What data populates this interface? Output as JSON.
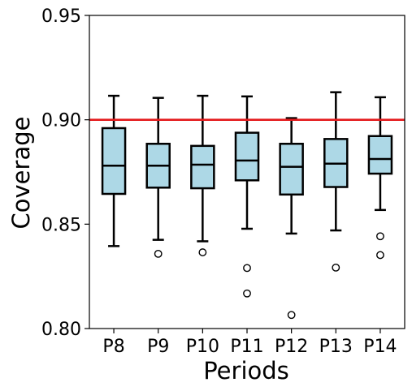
{
  "chart_data": {
    "type": "box",
    "xlabel": "Periods",
    "ylabel": "Coverage",
    "ylim": [
      0.8,
      0.95
    ],
    "yticks": [
      "0.80",
      "0.85",
      "0.90",
      "0.95"
    ],
    "categories": [
      "P8",
      "P9",
      "P10",
      "P11",
      "P12",
      "P13",
      "P14"
    ],
    "reference_line": {
      "value": 0.9,
      "color": "#e41a1c"
    },
    "box_fill": "#add8e6",
    "grid": false,
    "boxes": [
      {
        "label": "P8",
        "whisker_low": 0.8395,
        "q1": 0.8645,
        "median": 0.878,
        "q3": 0.896,
        "whisker_high": 0.9115,
        "outliers": []
      },
      {
        "label": "P9",
        "whisker_low": 0.8425,
        "q1": 0.8675,
        "median": 0.878,
        "q3": 0.8885,
        "whisker_high": 0.9105,
        "outliers": [
          0.8358
        ]
      },
      {
        "label": "P10",
        "whisker_low": 0.8418,
        "q1": 0.8672,
        "median": 0.8785,
        "q3": 0.8875,
        "whisker_high": 0.9115,
        "outliers": [
          0.8365
        ]
      },
      {
        "label": "P11",
        "whisker_low": 0.8478,
        "q1": 0.871,
        "median": 0.8805,
        "q3": 0.8938,
        "whisker_high": 0.9112,
        "outliers": [
          0.829,
          0.8168
        ]
      },
      {
        "label": "P12",
        "whisker_low": 0.8455,
        "q1": 0.8642,
        "median": 0.8775,
        "q3": 0.8885,
        "whisker_high": 0.9008,
        "outliers": [
          0.8065
        ]
      },
      {
        "label": "P13",
        "whisker_low": 0.847,
        "q1": 0.8678,
        "median": 0.879,
        "q3": 0.8908,
        "whisker_high": 0.9132,
        "outliers": [
          0.8292
        ]
      },
      {
        "label": "P14",
        "whisker_low": 0.8568,
        "q1": 0.8742,
        "median": 0.8812,
        "q3": 0.8922,
        "whisker_high": 0.9108,
        "outliers": [
          0.8442,
          0.8352
        ]
      }
    ]
  }
}
